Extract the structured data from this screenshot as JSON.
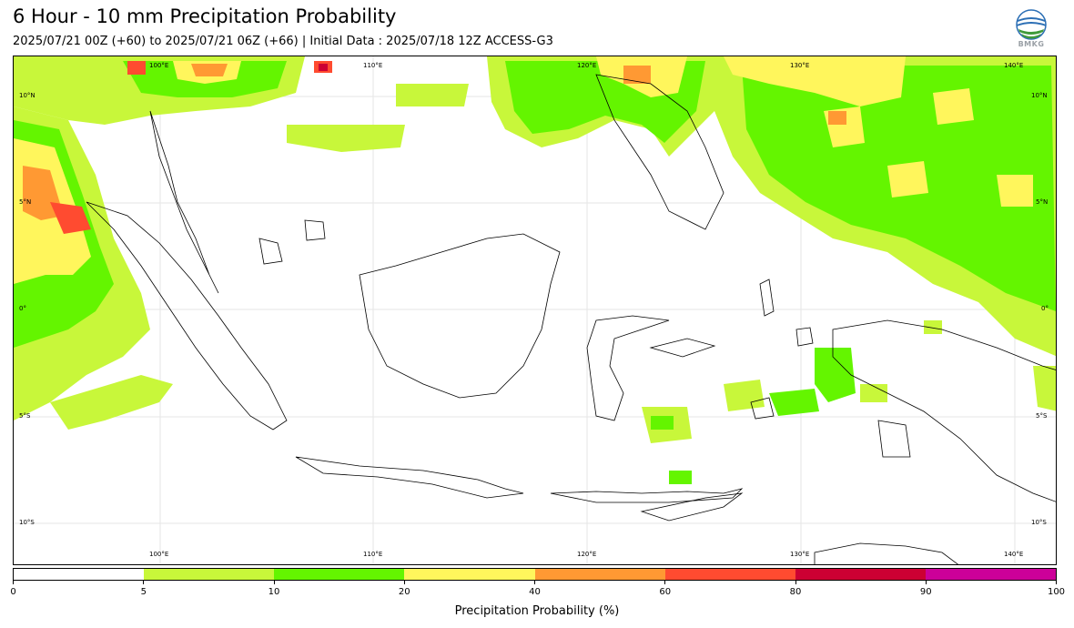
{
  "header": {
    "title": "6 Hour - 10 mm Precipitation Probability",
    "subtitle": "2025/07/21 00Z (+60) to 2025/07/21 06Z (+66) | Initial Data : 2025/07/18 12Z ACCESS-G3",
    "logo_text": "BMKG"
  },
  "map": {
    "lon_labels": [
      "100°E",
      "110°E",
      "120°E",
      "130°E",
      "140°E"
    ],
    "lat_labels": [
      "10°N",
      "5°N",
      "0°",
      "5°S",
      "10°S"
    ]
  },
  "colorbar": {
    "title": "Precipitation Probability (%)",
    "ticks": [
      "0",
      "5",
      "10",
      "20",
      "40",
      "60",
      "80",
      "90",
      "100"
    ],
    "colors": [
      "#ffffff",
      "#c8f73a",
      "#64f500",
      "#fff65c",
      "#ff9933",
      "#ff4b30",
      "#cc0033",
      "#cc0099"
    ]
  }
}
